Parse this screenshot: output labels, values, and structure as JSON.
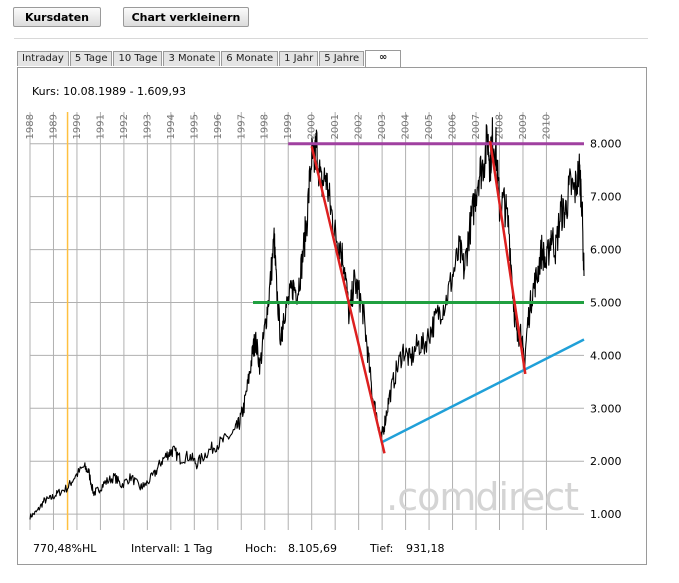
{
  "toolbar": {
    "kursdaten_label": "Kursdaten",
    "verkleinern_label": "Chart verkleinern"
  },
  "tabs": [
    {
      "label": "Intraday",
      "active": false
    },
    {
      "label": "5 Tage",
      "active": false
    },
    {
      "label": "10 Tage",
      "active": false
    },
    {
      "label": "3 Monate",
      "active": false
    },
    {
      "label": "6 Monate",
      "active": false
    },
    {
      "label": "1 Jahr",
      "active": false
    },
    {
      "label": "5 Jahre",
      "active": false
    },
    {
      "label": "∞",
      "active": true
    }
  ],
  "kurs_text": "Kurs: 10.08.1989 - 1.609,93",
  "watermark": ".comdirect",
  "footer": {
    "hl": "770,48%HL",
    "intervall": "Intervall: 1 Tag",
    "hoch_label": "Hoch:",
    "hoch_value": "8.105,69",
    "tief_label": "Tief:",
    "tief_value": "931,18"
  },
  "colors": {
    "price": "#000000",
    "marker": "#ffc040",
    "resistance": "#a040a0",
    "support": "#20a040",
    "trend_up": "#20a0d8",
    "trend_down": "#dd2020",
    "grid": "#b0b0b0"
  },
  "chart_data": {
    "type": "line",
    "x_ticks": [
      "1988",
      "1989",
      "1990",
      "1991",
      "1992",
      "1993",
      "1994",
      "1995",
      "1996",
      "1997",
      "1998",
      "1999",
      "2000",
      "2001",
      "2002",
      "2003",
      "2004",
      "2005",
      "2006",
      "2007",
      "2008",
      "2009",
      "2010"
    ],
    "y_ticks": [
      "1.000",
      "2.000",
      "3.000",
      "4.000",
      "5.000",
      "6.000",
      "7.000",
      "8.000"
    ],
    "xlim": [
      1988.0,
      2011.6
    ],
    "ylim": [
      700,
      8600
    ],
    "grid": true,
    "series": [
      {
        "x": [
          1988.0,
          1988.3,
          1988.6,
          1988.9,
          1989.2,
          1989.6,
          1989.9,
          1990.3,
          1990.5,
          1990.7,
          1990.9,
          1991.2,
          1991.6,
          1991.9,
          1992.3,
          1992.7,
          1992.9,
          1993.3,
          1993.6,
          1993.9,
          1994.1,
          1994.4,
          1994.8,
          1995.1,
          1995.5,
          1995.9,
          1996.3,
          1996.7,
          1996.9,
          1997.1,
          1997.3,
          1997.5,
          1997.6,
          1997.8,
          1998.0,
          1998.2,
          1998.4,
          1998.5,
          1998.7,
          1998.8,
          1999.0,
          1999.2,
          1999.4,
          1999.6,
          1999.8,
          2000.0,
          2000.1,
          2000.2,
          2000.4,
          2000.6,
          2000.8,
          2001.0,
          2001.2,
          2001.4,
          2001.6,
          2001.8,
          2002.0,
          2002.2,
          2002.4,
          2002.6,
          2002.8,
          2002.95,
          2003.1,
          2003.3,
          2003.6,
          2003.9,
          2004.2,
          2004.5,
          2004.8,
          2005.1,
          2005.4,
          2005.7,
          2006.0,
          2006.3,
          2006.5,
          2006.7,
          2006.9,
          2007.1,
          2007.3,
          2007.5,
          2007.6,
          2007.7,
          2007.85,
          2008.0,
          2008.2,
          2008.4,
          2008.6,
          2008.75,
          2008.9,
          2009.05,
          2009.2,
          2009.4,
          2009.6,
          2009.8,
          2010.0,
          2010.2,
          2010.4,
          2010.6,
          2010.8,
          2011.0,
          2011.2,
          2011.4,
          2011.5,
          2011.6
        ],
        "y": [
          950,
          1050,
          1250,
          1300,
          1400,
          1500,
          1700,
          1900,
          1800,
          1400,
          1450,
          1600,
          1700,
          1550,
          1700,
          1500,
          1550,
          1750,
          2000,
          2150,
          2200,
          2050,
          2100,
          1950,
          2150,
          2300,
          2400,
          2550,
          2700,
          3000,
          3500,
          4100,
          4300,
          3800,
          4500,
          5200,
          6200,
          5300,
          4200,
          4800,
          5000,
          5300,
          5200,
          5800,
          6600,
          7800,
          7600,
          8000,
          7200,
          7400,
          6800,
          6300,
          6100,
          5700,
          4700,
          5400,
          5200,
          4800,
          4000,
          3200,
          2800,
          2400,
          2700,
          3200,
          3700,
          4100,
          3900,
          4200,
          4200,
          4500,
          4800,
          5000,
          5500,
          6000,
          5600,
          6300,
          6800,
          7400,
          7600,
          8100,
          7600,
          8100,
          7900,
          6800,
          6900,
          6400,
          5000,
          4300,
          4500,
          3800,
          4600,
          5200,
          5500,
          6000,
          5700,
          6300,
          6000,
          6700,
          6700,
          7200,
          7100,
          7500,
          7000,
          5500
        ]
      }
    ],
    "annotations": [
      {
        "type": "hline",
        "name": "resistance",
        "y": 8000,
        "x1": 1999.0,
        "x2": 2011.6
      },
      {
        "type": "hline",
        "name": "support",
        "y": 5000,
        "x1": 1997.5,
        "x2": 2011.6
      },
      {
        "type": "vline",
        "name": "marker",
        "x": 1989.6
      },
      {
        "type": "trend",
        "name": "trend_up",
        "x1": 2002.95,
        "y1": 2350,
        "x2": 2011.6,
        "y2": 4300
      },
      {
        "type": "trend",
        "name": "trend_down_1",
        "x1": 2000.0,
        "y1": 7950,
        "x2": 2003.1,
        "y2": 2150
      },
      {
        "type": "trend",
        "name": "trend_down_2",
        "x1": 2007.6,
        "y1": 8050,
        "x2": 2009.1,
        "y2": 3650
      }
    ]
  }
}
